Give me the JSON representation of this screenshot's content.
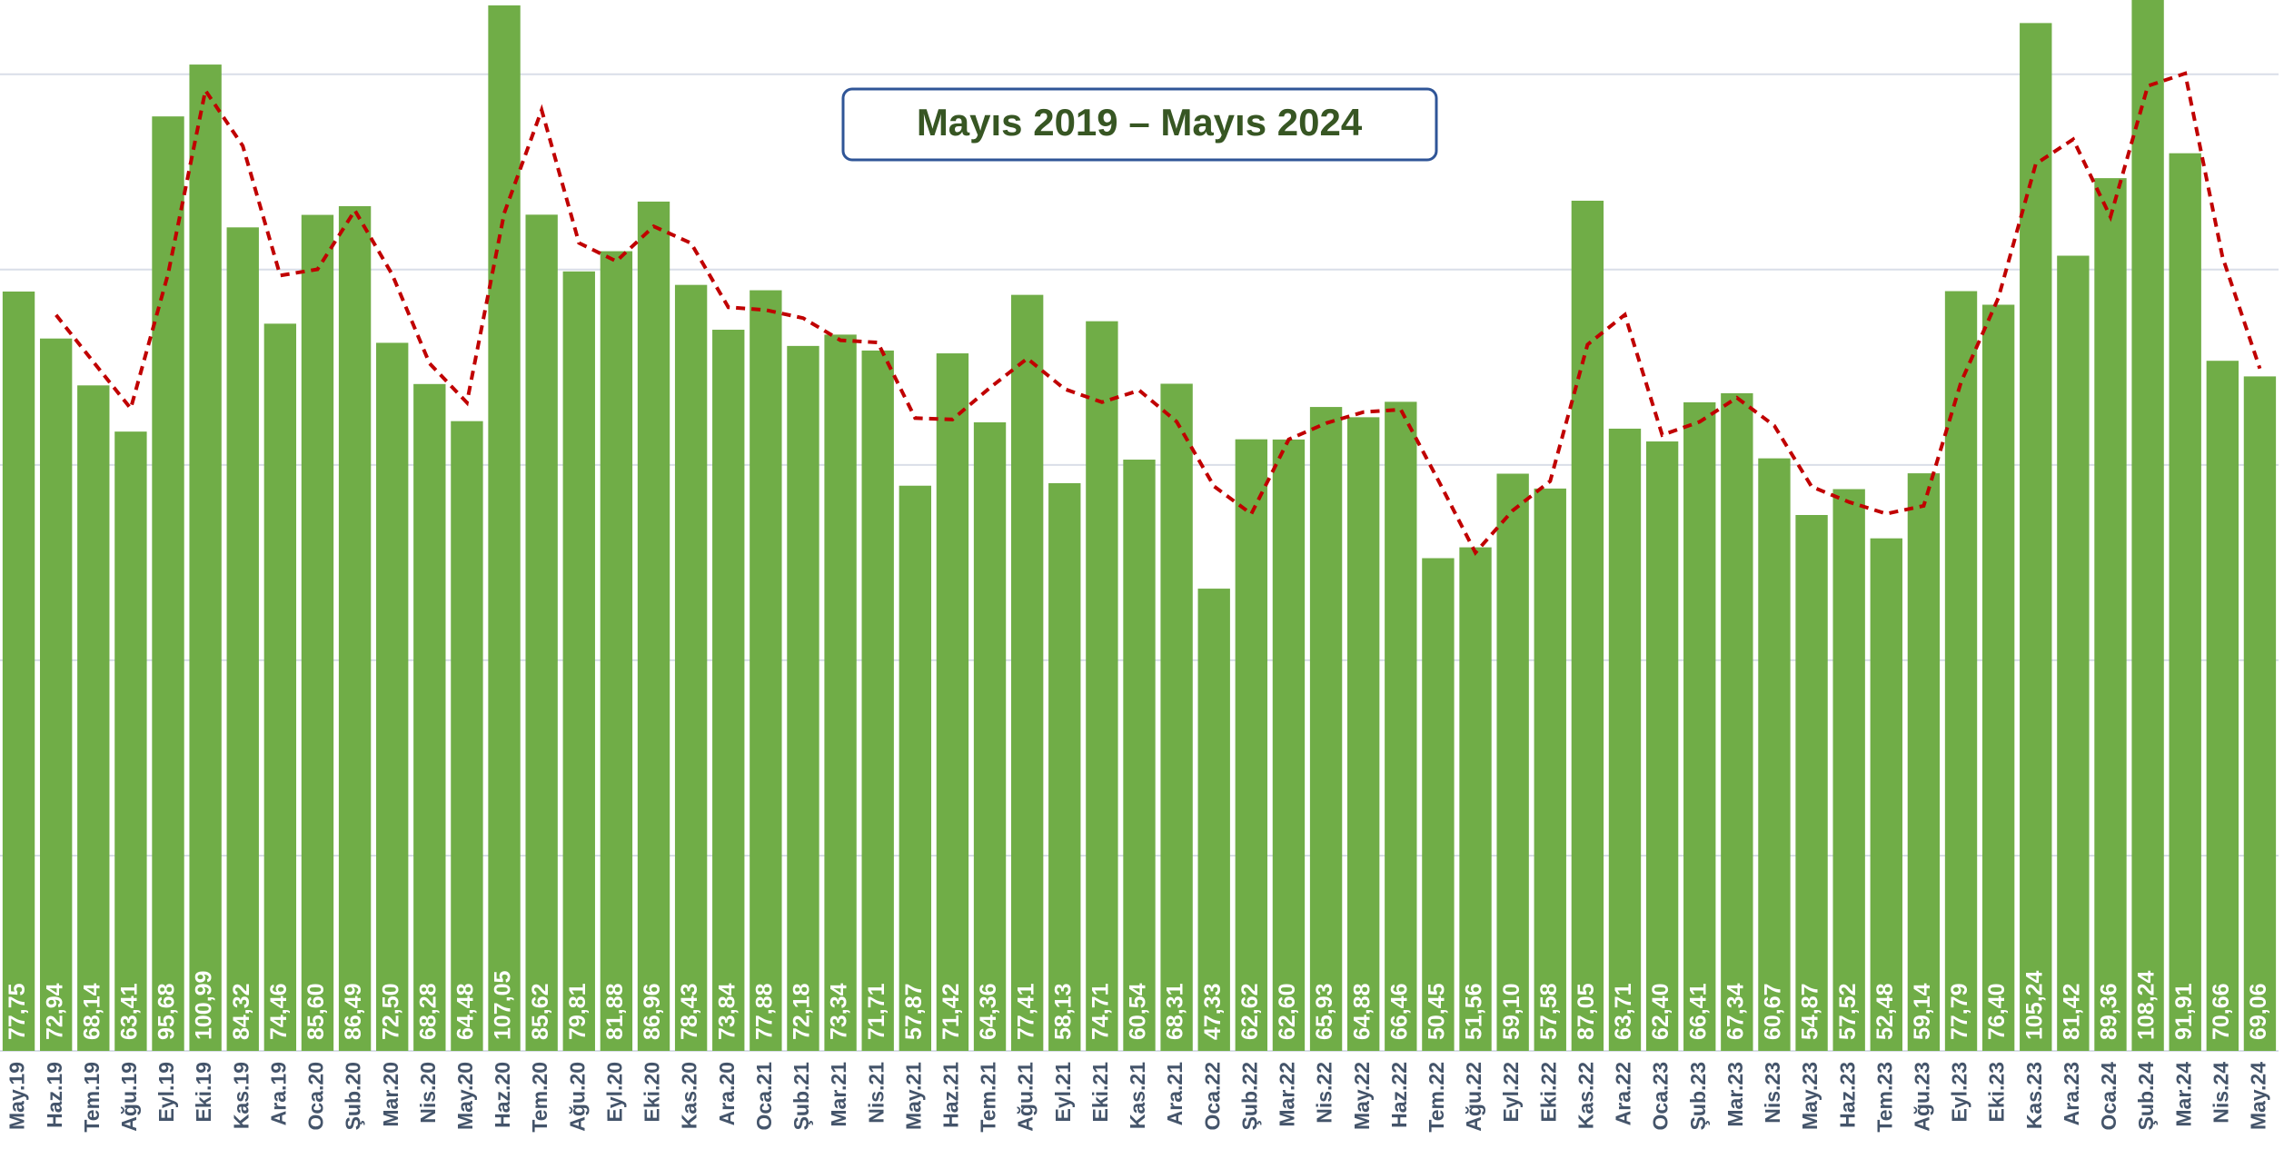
{
  "chart_data": {
    "type": "bar",
    "title": "Mayıs 2019 – Mayıs 2024",
    "categories": [
      "May.19",
      "Haz.19",
      "Tem.19",
      "Ağu.19",
      "Eyl.19",
      "Eki.19",
      "Kas.19",
      "Ara.19",
      "Oca.20",
      "Şub.20",
      "Mar.20",
      "Nis.20",
      "May.20",
      "Haz.20",
      "Tem.20",
      "Ağu.20",
      "Eyl.20",
      "Eki.20",
      "Kas.20",
      "Ara.20",
      "Oca.21",
      "Şub.21",
      "Mar.21",
      "Nis.21",
      "May.21",
      "Haz.21",
      "Tem.21",
      "Ağu.21",
      "Eyl.21",
      "Eki.21",
      "Kas.21",
      "Ara.21",
      "Oca.22",
      "Şub.22",
      "Mar.22",
      "Nis.22",
      "May.22",
      "Haz.22",
      "Tem.22",
      "Ağu.22",
      "Eyl.22",
      "Eki.22",
      "Kas.22",
      "Ara.22",
      "Oca.23",
      "Şub.23",
      "Mar.23",
      "Nis.23",
      "May.23",
      "Haz.23",
      "Tem.23",
      "Ağu.23",
      "Eyl.23",
      "Eki.23",
      "Kas.23",
      "Ara.23",
      "Oca.24",
      "Şub.24",
      "Mar.24",
      "Nis.24",
      "May.24"
    ],
    "values": [
      77.75,
      72.94,
      68.14,
      63.41,
      95.68,
      100.99,
      84.32,
      74.46,
      85.6,
      86.49,
      72.5,
      68.28,
      64.48,
      107.05,
      85.62,
      79.81,
      81.88,
      86.96,
      78.43,
      73.84,
      77.88,
      72.18,
      73.34,
      71.71,
      57.87,
      71.42,
      64.36,
      77.41,
      58.13,
      74.71,
      60.54,
      68.31,
      47.33,
      62.62,
      62.6,
      65.93,
      64.88,
      66.46,
      50.45,
      51.56,
      59.1,
      57.58,
      87.05,
      63.71,
      62.4,
      66.41,
      67.34,
      60.67,
      54.87,
      57.52,
      52.48,
      59.14,
      77.79,
      76.4,
      105.24,
      81.42,
      89.36,
      108.24,
      91.91,
      70.66,
      69.06
    ],
    "value_labels": [
      "77,75",
      "72,94",
      "68,14",
      "63,41",
      "95,68",
      "100,99",
      "84,32",
      "74,46",
      "85,60",
      "86,49",
      "72,50",
      "68,28",
      "64,48",
      "107,05",
      "85,62",
      "79,81",
      "81,88",
      "86,96",
      "78,43",
      "73,84",
      "77,88",
      "72,18",
      "73,34",
      "71,71",
      "57,87",
      "71,42",
      "64,36",
      "77,41",
      "58,13",
      "74,71",
      "60,54",
      "68,31",
      "47,33",
      "62,62",
      "62,60",
      "65,93",
      "64,88",
      "66,46",
      "50,45",
      "51,56",
      "59,10",
      "57,58",
      "87,05",
      "63,71",
      "62,40",
      "66,41",
      "67,34",
      "60,67",
      "54,87",
      "57,52",
      "52,48",
      "59,14",
      "77,79",
      "76,40",
      "105,24",
      "81,42",
      "89,36",
      "108,24",
      "91,91",
      "70,66",
      "69,06"
    ],
    "color": "#70ad47",
    "trend_values": [
      null,
      75.35,
      70.54,
      65.78,
      79.55,
      98.34,
      92.66,
      79.39,
      80.03,
      86.05,
      79.5,
      70.39,
      66.38,
      85.77,
      96.34,
      82.72,
      80.85,
      84.42,
      82.7,
      76.14,
      75.86,
      75.03,
      72.76,
      72.53,
      64.79,
      64.65,
      67.89,
      70.89,
      67.77,
      66.42,
      67.63,
      64.43,
      57.82,
      54.98,
      62.61,
      64.27,
      65.41,
      65.67,
      58.46,
      51.01,
      55.33,
      58.34,
      72.32,
      75.38,
      63.06,
      64.41,
      66.88,
      64.01,
      57.77,
      56.2,
      55.0,
      55.81,
      68.47,
      77.1,
      90.82,
      93.33,
      85.39,
      98.8,
      100.08,
      81.29,
      69.86
    ],
    "trend_color": "#c00000",
    "ylim": [
      0,
      107.6
    ],
    "yticks": [
      0,
      20,
      40,
      60,
      80,
      100
    ],
    "grid": true
  }
}
